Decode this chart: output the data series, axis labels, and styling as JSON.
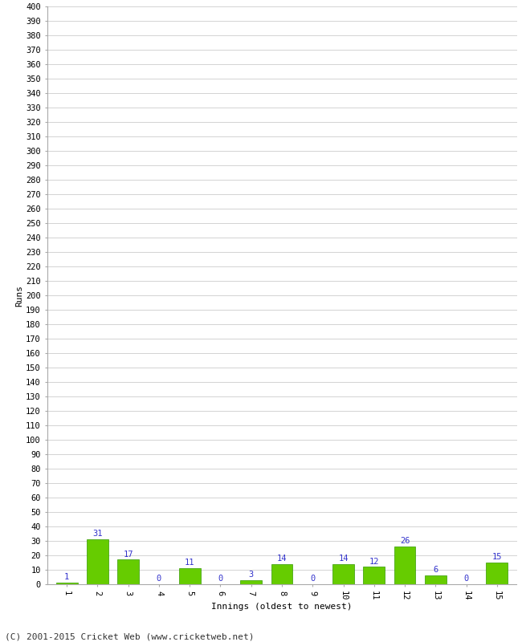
{
  "xlabel": "Innings (oldest to newest)",
  "ylabel": "Runs",
  "categories": [
    "1",
    "2",
    "3",
    "4",
    "5",
    "6",
    "7",
    "8",
    "9",
    "10",
    "11",
    "12",
    "13",
    "14",
    "15"
  ],
  "values": [
    1,
    31,
    17,
    0,
    11,
    0,
    3,
    14,
    0,
    14,
    12,
    26,
    6,
    0,
    15
  ],
  "bar_color": "#66cc00",
  "bar_edge_color": "#339900",
  "label_color": "#3333cc",
  "footer_text": "(C) 2001-2015 Cricket Web (www.cricketweb.net)",
  "ylim": [
    0,
    400
  ],
  "ytick_step": 10,
  "background_color": "#ffffff",
  "grid_color": "#cccccc",
  "label_fontsize": 7.5,
  "tick_fontsize": 7.5,
  "axis_label_fontsize": 8,
  "footer_fontsize": 8
}
